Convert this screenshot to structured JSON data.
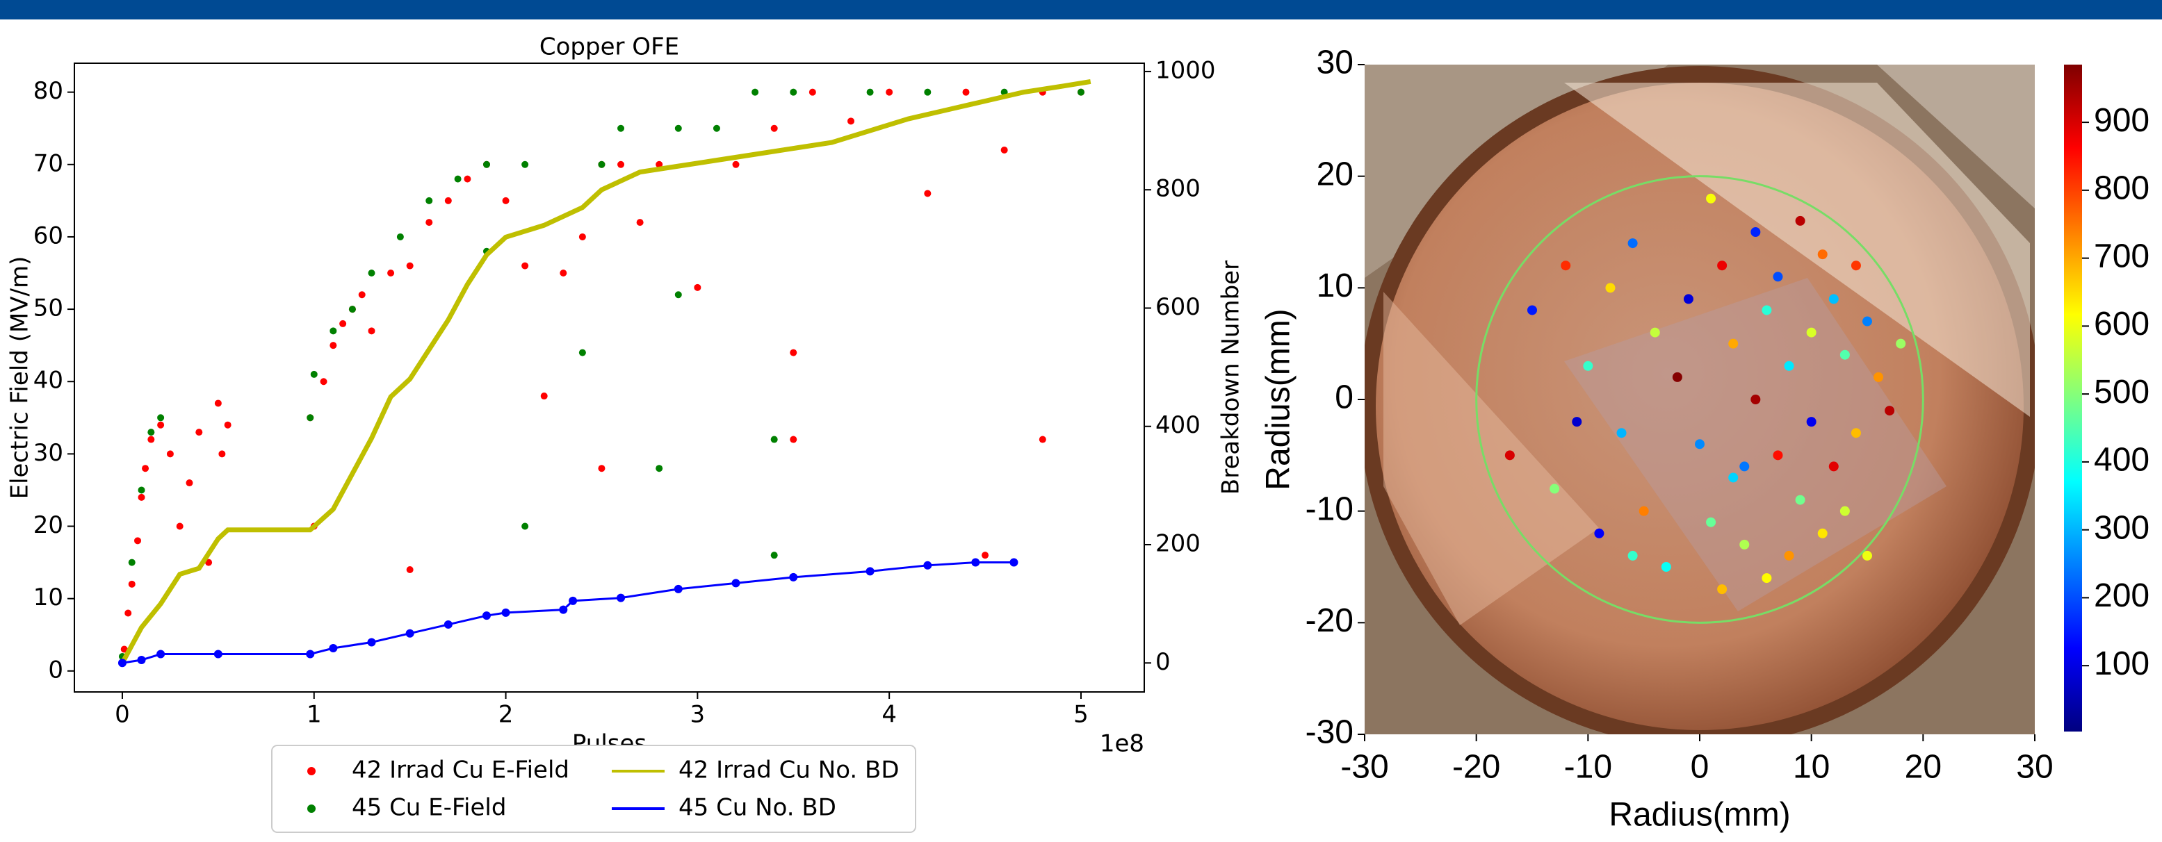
{
  "chart_data": [
    {
      "type": "combo",
      "title": "Copper OFE",
      "x_label": "Pulses",
      "x_offset_label": "1e8",
      "y_label": "Electric Field (MV/m)",
      "y2_label": "Breakdown Number",
      "xlim": [
        -0.25,
        5.33
      ],
      "xticks": [
        0,
        1,
        2,
        3,
        4,
        5
      ],
      "ylim": [
        -2.9,
        84
      ],
      "yticks": [
        0,
        10,
        20,
        30,
        40,
        50,
        60,
        70,
        80
      ],
      "y2lim": [
        -49,
        1014
      ],
      "y2ticks": [
        0,
        200,
        400,
        600,
        800,
        1000
      ],
      "legend": "bottom-outside",
      "series": [
        {
          "name": "42 Irrad Cu E-Field",
          "kind": "scatter",
          "color": "#ff0000",
          "x": [
            0.01,
            0.03,
            0.05,
            0.08,
            0.1,
            0.12,
            0.15,
            0.2,
            0.25,
            0.3,
            0.35,
            0.4,
            0.45,
            0.5,
            0.52,
            0.55,
            0.98,
            1.0,
            1.05,
            1.1,
            1.15,
            1.2,
            1.25,
            1.3,
            1.4,
            1.5,
            1.6,
            1.7,
            1.8,
            1.9,
            2.0,
            2.1,
            2.2,
            2.3,
            2.4,
            2.5,
            2.6,
            2.7,
            2.8,
            3.0,
            3.2,
            3.4,
            3.5,
            3.6,
            3.8,
            4.0,
            4.2,
            4.4,
            4.6,
            4.8,
            5.0,
            1.5,
            2.5,
            3.5,
            4.5,
            4.8
          ],
          "values": [
            3,
            8,
            12,
            18,
            24,
            28,
            32,
            34,
            30,
            20,
            26,
            33,
            15,
            37,
            30,
            34,
            35,
            20,
            40,
            45,
            48,
            50,
            52,
            47,
            55,
            56,
            62,
            65,
            68,
            70,
            65,
            56,
            38,
            55,
            60,
            70,
            70,
            62,
            70,
            53,
            70,
            75,
            44,
            80,
            76,
            80,
            66,
            80,
            72,
            80,
            80,
            14,
            28,
            32,
            16,
            32
          ]
        },
        {
          "name": "45 Cu E-Field",
          "kind": "scatter",
          "color": "#008000",
          "x": [
            0.0,
            0.05,
            0.1,
            0.15,
            0.2,
            0.98,
            1.0,
            1.1,
            1.2,
            1.3,
            1.45,
            1.6,
            1.75,
            1.9,
            2.1,
            2.5,
            2.6,
            2.9,
            3.1,
            3.3,
            3.5,
            3.9,
            4.2,
            4.6,
            5.0,
            2.1,
            2.8,
            3.4,
            3.4,
            2.4,
            2.9,
            1.9
          ],
          "values": [
            2,
            15,
            25,
            33,
            35,
            35,
            41,
            47,
            50,
            55,
            60,
            65,
            68,
            70,
            70,
            70,
            75,
            75,
            75,
            80,
            80,
            80,
            80,
            80,
            80,
            20,
            28,
            32,
            16,
            44,
            52,
            58
          ]
        },
        {
          "name": "42 Irrad Cu No. BD",
          "kind": "line",
          "axis": "y2",
          "color": "#bfbf00",
          "x": [
            0,
            0.05,
            0.1,
            0.2,
            0.3,
            0.4,
            0.5,
            0.55,
            0.98,
            1.1,
            1.2,
            1.3,
            1.4,
            1.5,
            1.6,
            1.7,
            1.8,
            1.9,
            2.0,
            2.2,
            2.4,
            2.5,
            2.7,
            2.9,
            3.1,
            3.3,
            3.5,
            3.7,
            3.9,
            4.1,
            4.3,
            4.5,
            4.7,
            4.9,
            5.05
          ],
          "values": [
            0,
            30,
            60,
            100,
            150,
            160,
            210,
            225,
            225,
            260,
            320,
            380,
            450,
            480,
            530,
            580,
            640,
            690,
            720,
            740,
            770,
            800,
            830,
            840,
            850,
            860,
            870,
            880,
            900,
            920,
            935,
            950,
            965,
            975,
            983
          ]
        },
        {
          "name": "45 Cu No. BD",
          "kind": "line",
          "axis": "y2",
          "markers": true,
          "color": "#0000ff",
          "x": [
            0,
            0.1,
            0.2,
            0.5,
            0.98,
            1.1,
            1.3,
            1.5,
            1.7,
            1.9,
            2.0,
            2.3,
            2.35,
            2.6,
            2.9,
            3.2,
            3.5,
            3.9,
            4.2,
            4.45,
            4.65
          ],
          "values": [
            0,
            5,
            15,
            15,
            15,
            25,
            35,
            50,
            65,
            80,
            85,
            90,
            105,
            110,
            125,
            135,
            145,
            155,
            165,
            170,
            170
          ]
        }
      ]
    },
    {
      "type": "scatter",
      "x_label": "Radius(mm)",
      "y_label": "Radius(mm)",
      "xlim": [
        -30,
        30
      ],
      "ylim": [
        -30,
        30
      ],
      "xticks": [
        -30,
        -20,
        -10,
        0,
        10,
        20,
        30
      ],
      "yticks": [
        -30,
        -20,
        -10,
        0,
        10,
        20,
        30
      ],
      "colormap": "jet",
      "clim": [
        3,
        985
      ],
      "cticks": [
        100,
        200,
        300,
        400,
        500,
        600,
        700,
        800,
        900
      ],
      "circle_radius": 20,
      "circle_color": "#77dd66",
      "x": [
        -17,
        -15,
        -13,
        -12,
        -10,
        -9,
        -8,
        -7,
        -6,
        -5,
        -4,
        -3,
        -2,
        -1,
        0,
        1,
        1,
        2,
        3,
        3,
        4,
        5,
        5,
        6,
        6,
        7,
        7,
        8,
        8,
        9,
        9,
        10,
        10,
        11,
        11,
        12,
        12,
        13,
        13,
        14,
        14,
        15,
        15,
        16,
        17,
        18,
        -11,
        -6,
        2,
        4
      ],
      "values": [
        -5,
        8,
        -8,
        12,
        3,
        -12,
        10,
        -3,
        14,
        -10,
        6,
        -15,
        2,
        9,
        -4,
        18,
        -11,
        12,
        -7,
        5,
        -13,
        15,
        0,
        -16,
        8,
        -5,
        11,
        -14,
        3,
        16,
        -9,
        6,
        -2,
        13,
        -12,
        9,
        -6,
        4,
        -10,
        12,
        -3,
        7,
        -14,
        2,
        -1,
        5,
        -2,
        -14,
        -17,
        -6
      ],
      "c": [
        900,
        150,
        500,
        820,
        420,
        120,
        650,
        300,
        230,
        740,
        560,
        380,
        980,
        90,
        260,
        610,
        470,
        880,
        330,
        700,
        540,
        160,
        950,
        620,
        410,
        850,
        200,
        720,
        350,
        930,
        480,
        580,
        110,
        760,
        640,
        310,
        890,
        450,
        570,
        810,
        680,
        250,
        600,
        720,
        930,
        520,
        80,
        420,
        680,
        240
      ]
    }
  ]
}
